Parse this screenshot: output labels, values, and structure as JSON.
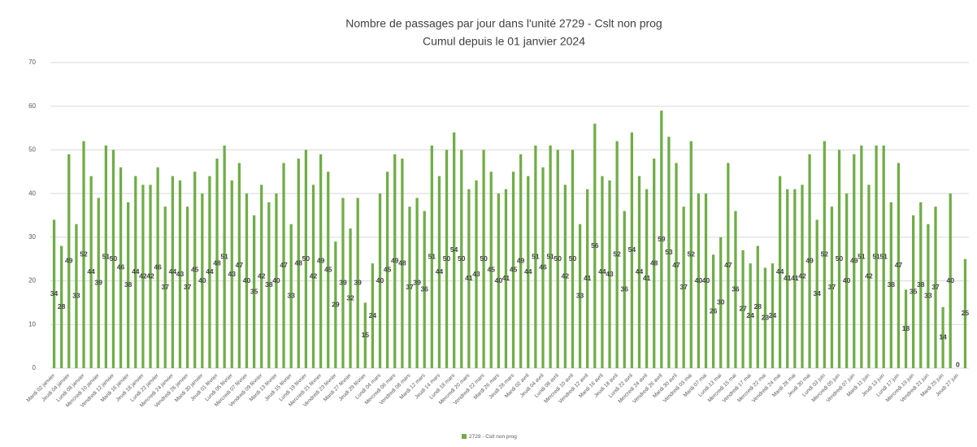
{
  "chart_data": {
    "type": "bar",
    "title": "Nombre de passages par jour dans l'unité 2729 - Cslt non prog",
    "subtitle": "Cumul depuis le 01 janvier 2024",
    "categories": [
      "Mardi 02 janvier",
      null,
      "Jeudi 04 janvier",
      null,
      "Lundi 08 janvier",
      null,
      "Mercredi 10 janvier",
      null,
      "Vendredi 12 janvier",
      null,
      "Mardi 16 janvier",
      null,
      "Jeudi 18 janvier",
      null,
      "Lundi 22 janvier",
      null,
      "Mercredi 24 janvier",
      null,
      "Vendredi 26 janvier",
      null,
      "Mardi 30 janvier",
      null,
      "Jeudi 01 février",
      null,
      "Lundi 05 février",
      null,
      "Mercredi 07 février",
      null,
      "Vendredi 09 février",
      null,
      "Mardi 13 février",
      null,
      "Jeudi 15 février",
      null,
      "Lundi 19 février",
      null,
      "Mercredi 21 février",
      null,
      "Vendredi 23 février",
      null,
      "Mardi 27 février",
      null,
      "Jeudi 29 février",
      null,
      "Lundi 04 mars",
      null,
      "Mercredi 06 mars",
      null,
      "Vendredi 08 mars",
      null,
      "Mardi 12 mars",
      null,
      "Jeudi 14 mars",
      null,
      "Lundi 18 mars",
      null,
      "Mercredi 20 mars",
      null,
      "Vendredi 22 mars",
      null,
      "Mardi 26 mars",
      null,
      "Jeudi 28 mars",
      null,
      "Mardi 02 avril",
      null,
      "Jeudi 04 avril",
      null,
      "Lundi 08 avril",
      null,
      "Mercredi 10 avril",
      null,
      "Vendredi 12 avril",
      null,
      "Mardi 16 avril",
      null,
      "Jeudi 18 avril",
      null,
      "Lundi 22 avril",
      null,
      "Mercredi 24 avril",
      null,
      "Vendredi 26 avril",
      null,
      "Mardi 30 avril",
      null,
      "Vendredi 03 mai",
      null,
      "Mardi 07 mai",
      null,
      "Lundi 13 mai",
      null,
      "Mercredi 15 mai",
      null,
      "Vendredi 17 mai",
      null,
      "Mercredi 22 mai",
      null,
      "Vendredi 24 mai",
      null,
      "Mardi 28 mai",
      null,
      "Jeudi 30 mai",
      null,
      "Lundi 03 juin",
      null,
      "Mercredi 05 juin",
      null,
      "Vendredi 07 juin",
      null,
      "Mardi 11 juin",
      null,
      "Jeudi 13 juin",
      null,
      "Lundi 17 juin",
      null,
      "Mercredi 19 juin",
      null,
      "Vendredi 21 juin",
      null,
      "Mardi 25 juin",
      null,
      "Jeudi 27 juin",
      null
    ],
    "series": [
      {
        "name": "2729 - Cslt non prog",
        "color": "#70ad47",
        "values": [
          34,
          28,
          49,
          33,
          52,
          44,
          39,
          51,
          50,
          46,
          38,
          44,
          42,
          42,
          46,
          37,
          44,
          43,
          37,
          45,
          40,
          44,
          48,
          51,
          43,
          47,
          40,
          35,
          42,
          38,
          40,
          47,
          33,
          48,
          50,
          42,
          49,
          45,
          29,
          39,
          32,
          39,
          15,
          24,
          40,
          45,
          49,
          48,
          37,
          39,
          36,
          51,
          44,
          50,
          54,
          50,
          41,
          43,
          50,
          45,
          40,
          41,
          45,
          49,
          44,
          51,
          46,
          51,
          50,
          42,
          50,
          33,
          41,
          56,
          44,
          43,
          52,
          36,
          54,
          44,
          41,
          48,
          59,
          53,
          47,
          37,
          52,
          40,
          40,
          26,
          30,
          47,
          36,
          27,
          24,
          28,
          23,
          24,
          44,
          41,
          41,
          42,
          49,
          34,
          52,
          37,
          50,
          40,
          49,
          51,
          42,
          51,
          51,
          38,
          47,
          18,
          35,
          38,
          33,
          37,
          14,
          40,
          0,
          25
        ]
      }
    ],
    "ylim": [
      0,
      70
    ],
    "yticks": [
      0,
      10,
      20,
      30,
      40,
      50,
      60,
      70
    ],
    "grid": true,
    "legend": "bottom"
  }
}
